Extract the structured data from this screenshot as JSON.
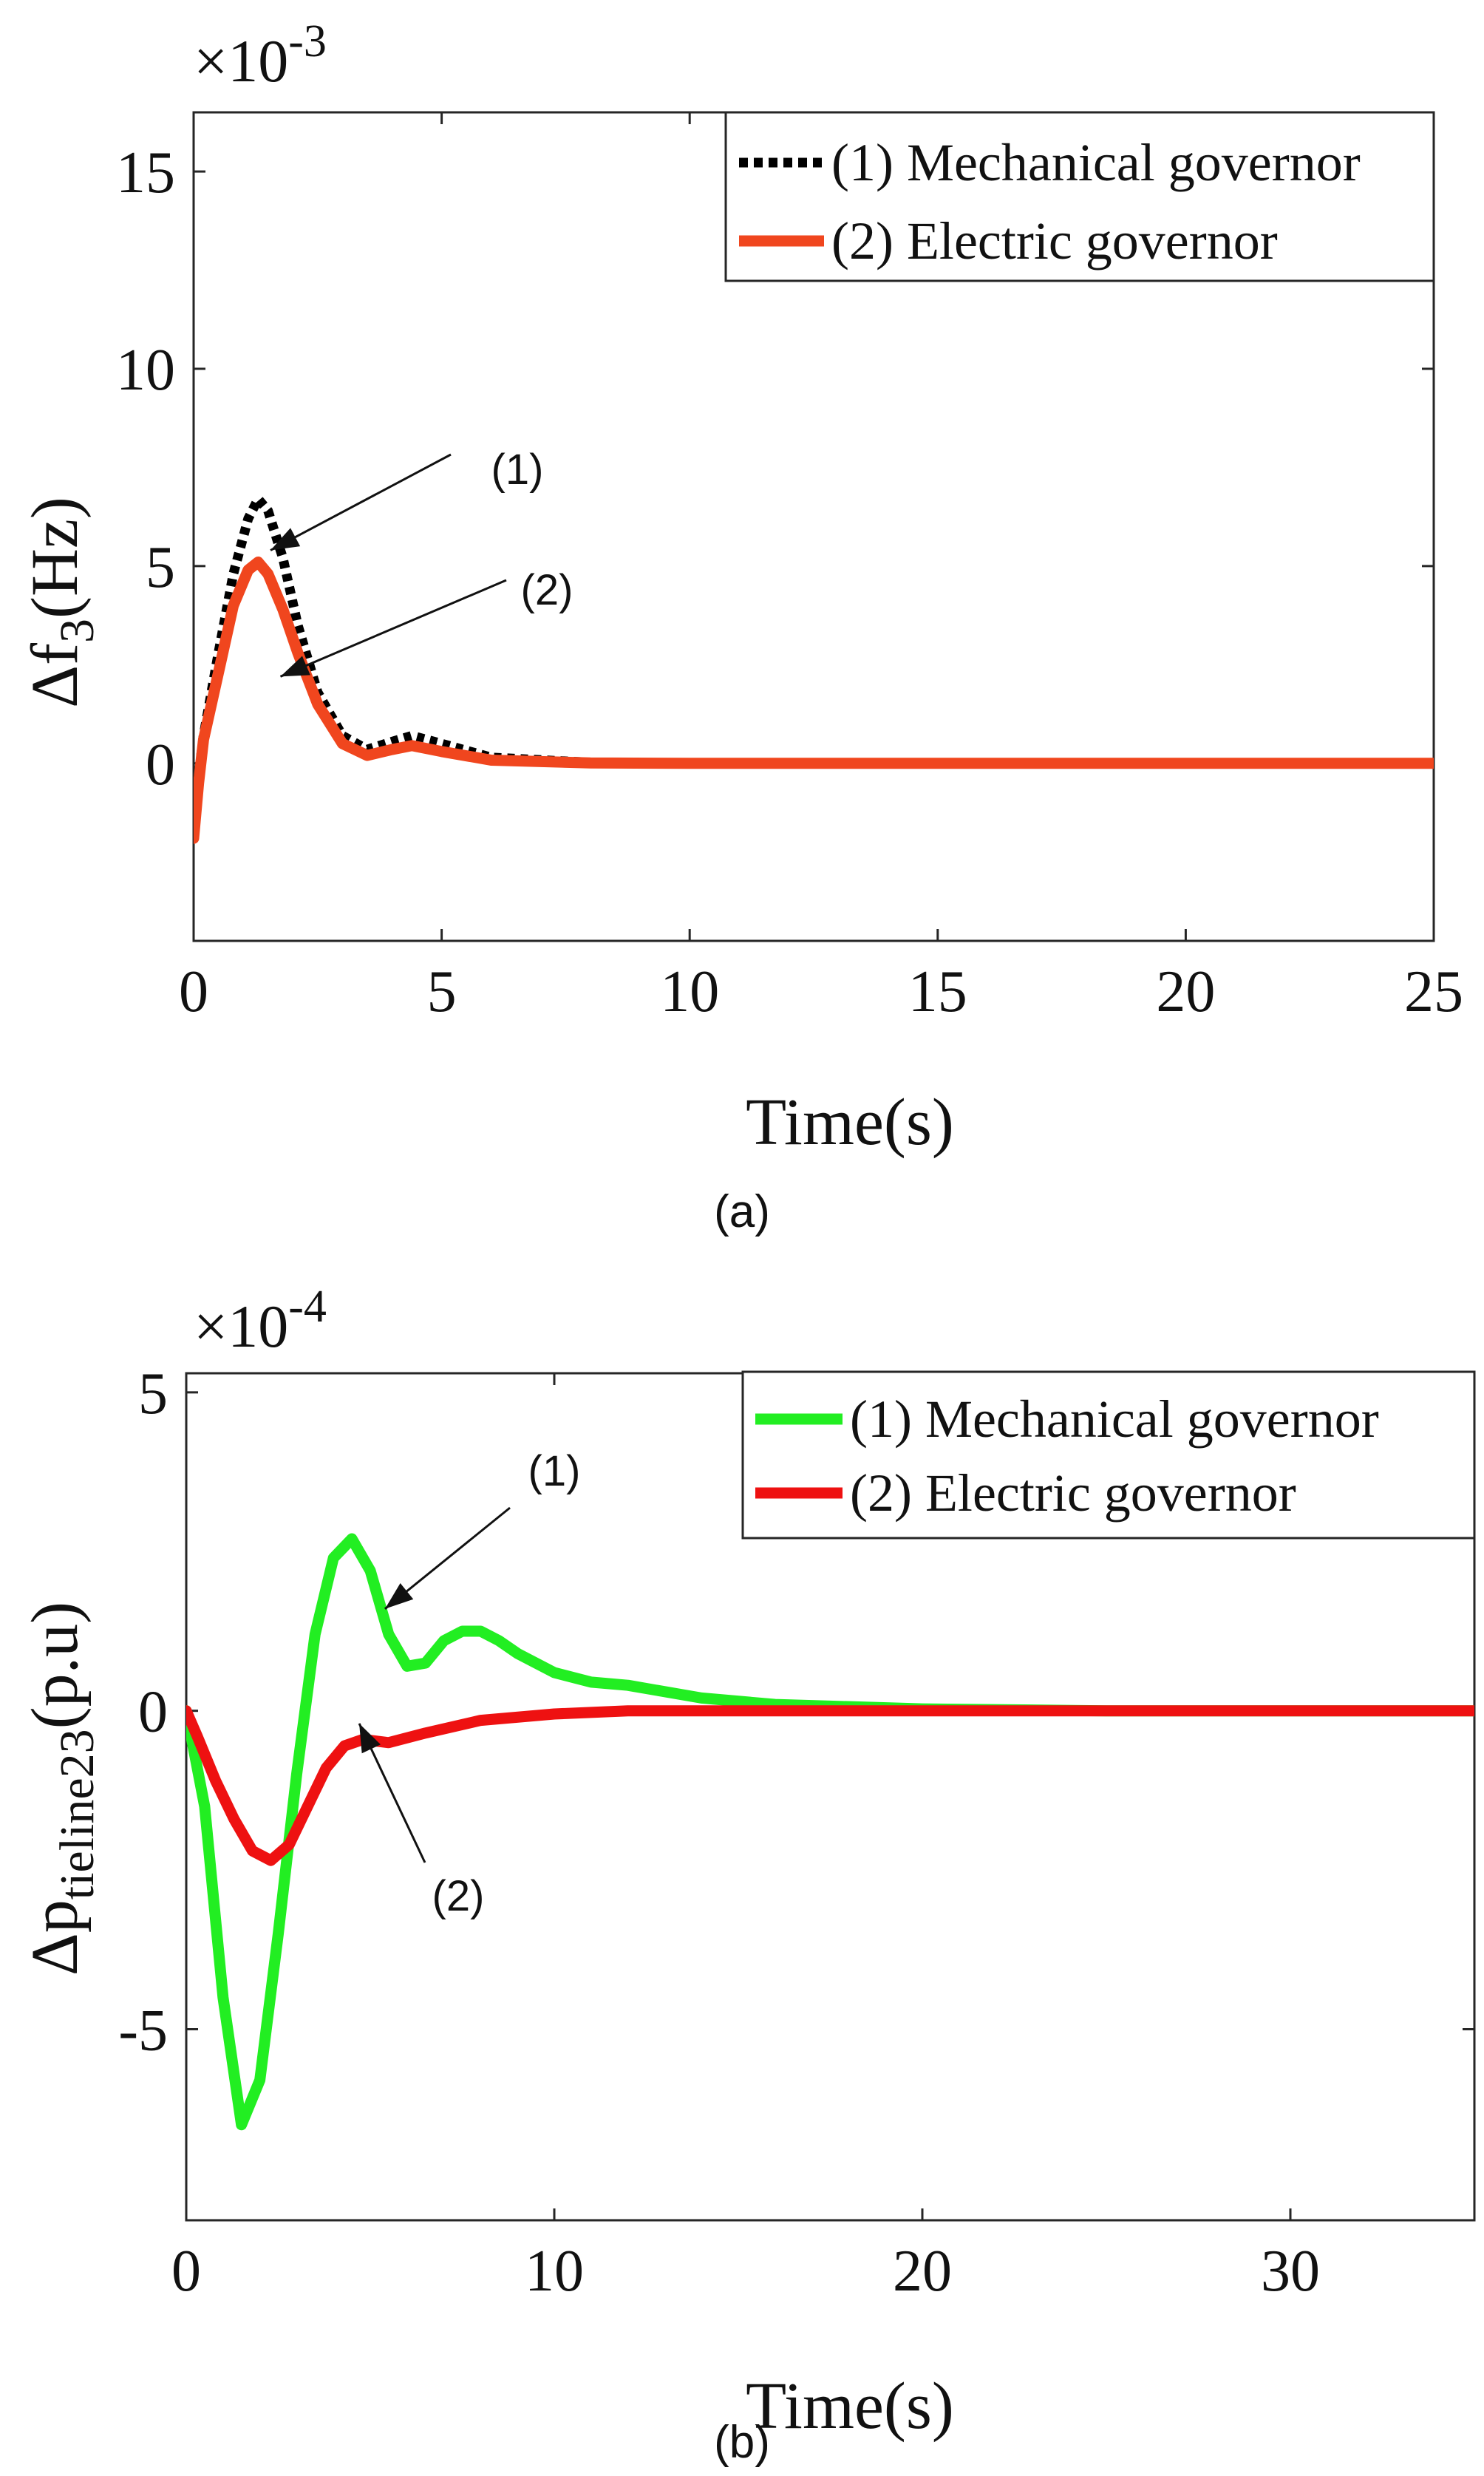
{
  "chart_data": [
    {
      "type": "line",
      "panel_label": "(a)",
      "exponent": {
        "base": "×10",
        "power": "-3"
      },
      "ylabel": {
        "main": "Δf",
        "sub": "3",
        "rest": "(Hz)"
      },
      "xlabel": "Time(s)",
      "xlim": [
        0,
        25
      ],
      "ylim": [
        -4.5,
        16.5
      ],
      "xticks": [
        0,
        5,
        10,
        15,
        20,
        25
      ],
      "yticks": [
        0,
        5,
        10,
        15
      ],
      "x_tick_labels": [
        "0",
        "5",
        "10",
        "15",
        "20",
        "25"
      ],
      "y_tick_labels": [
        "0",
        "5",
        "10",
        "15"
      ],
      "legend_position": "top-right",
      "annotations": [
        "(1)",
        "(2)"
      ],
      "series": [
        {
          "name": "(1) Mechanical governor",
          "color": "#000000",
          "style": "dotted",
          "points": [
            [
              0,
              -1.5
            ],
            [
              0.1,
              -0.3
            ],
            [
              0.2,
              0.7
            ],
            [
              0.5,
              2.8
            ],
            [
              0.8,
              4.8
            ],
            [
              1.1,
              6.2
            ],
            [
              1.3,
              6.7
            ],
            [
              1.5,
              6.4
            ],
            [
              1.8,
              5.2
            ],
            [
              2.1,
              3.5
            ],
            [
              2.5,
              1.8
            ],
            [
              3.0,
              0.7
            ],
            [
              3.5,
              0.35
            ],
            [
              4.0,
              0.55
            ],
            [
              4.4,
              0.7
            ],
            [
              5.0,
              0.5
            ],
            [
              6.0,
              0.15
            ],
            [
              8,
              0.02
            ],
            [
              10,
              0
            ],
            [
              15,
              0
            ],
            [
              20,
              0
            ],
            [
              25,
              0
            ]
          ]
        },
        {
          "name": "(2) Electric governor",
          "color": "#f0461e",
          "style": "solid",
          "points": [
            [
              0,
              -1.9
            ],
            [
              0.1,
              -0.5
            ],
            [
              0.2,
              0.6
            ],
            [
              0.5,
              2.3
            ],
            [
              0.8,
              4.0
            ],
            [
              1.1,
              4.9
            ],
            [
              1.3,
              5.1
            ],
            [
              1.5,
              4.8
            ],
            [
              1.8,
              3.9
            ],
            [
              2.1,
              2.8
            ],
            [
              2.5,
              1.5
            ],
            [
              3.0,
              0.5
            ],
            [
              3.5,
              0.2
            ],
            [
              4.0,
              0.35
            ],
            [
              4.4,
              0.45
            ],
            [
              5.0,
              0.3
            ],
            [
              6.0,
              0.08
            ],
            [
              8,
              0.01
            ],
            [
              10,
              0
            ],
            [
              15,
              0
            ],
            [
              20,
              0
            ],
            [
              25,
              0
            ]
          ]
        }
      ]
    },
    {
      "type": "line",
      "panel_label": "(b)",
      "exponent": {
        "base": "×10",
        "power": "-4"
      },
      "ylabel": {
        "main": "Δp",
        "sub": "tieline23",
        "rest": "(p.u)"
      },
      "xlabel": "Time(s)",
      "xlim": [
        0,
        35
      ],
      "ylim": [
        -8,
        5.3
      ],
      "xticks": [
        0,
        10,
        20,
        30
      ],
      "yticks": [
        -5,
        0,
        5
      ],
      "x_tick_labels": [
        "0",
        "10",
        "20",
        "30"
      ],
      "y_tick_labels": [
        "-5",
        "0",
        "5"
      ],
      "legend_position": "top-right",
      "annotations": [
        "(1)",
        "(2)"
      ],
      "series": [
        {
          "name": "(1) Mechanical governor",
          "color": "#22ee22",
          "style": "solid",
          "points": [
            [
              0,
              0
            ],
            [
              0.5,
              -1.5
            ],
            [
              1.0,
              -4.5
            ],
            [
              1.5,
              -6.5
            ],
            [
              2.0,
              -5.8
            ],
            [
              2.5,
              -3.5
            ],
            [
              3.0,
              -1.0
            ],
            [
              3.5,
              1.2
            ],
            [
              4.0,
              2.4
            ],
            [
              4.5,
              2.7
            ],
            [
              5.0,
              2.2
            ],
            [
              5.5,
              1.2
            ],
            [
              6.0,
              0.7
            ],
            [
              6.5,
              0.75
            ],
            [
              7.0,
              1.1
            ],
            [
              7.5,
              1.25
            ],
            [
              8.0,
              1.25
            ],
            [
              8.5,
              1.1
            ],
            [
              9.0,
              0.9
            ],
            [
              10,
              0.6
            ],
            [
              11,
              0.45
            ],
            [
              12,
              0.4
            ],
            [
              14,
              0.2
            ],
            [
              16,
              0.1
            ],
            [
              20,
              0.03
            ],
            [
              25,
              0
            ],
            [
              30,
              0
            ],
            [
              35,
              0
            ]
          ]
        },
        {
          "name": "(2) Electric governor",
          "color": "#ee1111",
          "style": "solid",
          "points": [
            [
              0,
              0
            ],
            [
              0.3,
              -0.4
            ],
            [
              0.8,
              -1.1
            ],
            [
              1.3,
              -1.7
            ],
            [
              1.8,
              -2.2
            ],
            [
              2.3,
              -2.35
            ],
            [
              2.8,
              -2.1
            ],
            [
              3.3,
              -1.5
            ],
            [
              3.8,
              -0.9
            ],
            [
              4.3,
              -0.55
            ],
            [
              4.8,
              -0.45
            ],
            [
              5.5,
              -0.5
            ],
            [
              6.5,
              -0.35
            ],
            [
              8,
              -0.15
            ],
            [
              10,
              -0.05
            ],
            [
              12,
              0
            ],
            [
              15,
              0
            ],
            [
              20,
              0
            ],
            [
              25,
              0
            ],
            [
              30,
              0
            ],
            [
              35,
              0
            ]
          ]
        }
      ]
    }
  ]
}
